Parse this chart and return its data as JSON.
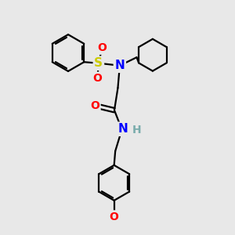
{
  "bg_color": "#e8e8e8",
  "bond_color": "#000000",
  "atom_colors": {
    "N": "#0000ff",
    "O": "#ff0000",
    "S": "#cccc00",
    "H": "#7aacac",
    "C": "#000000"
  },
  "line_width": 1.6,
  "figsize": [
    3.0,
    3.0
  ],
  "dpi": 100
}
